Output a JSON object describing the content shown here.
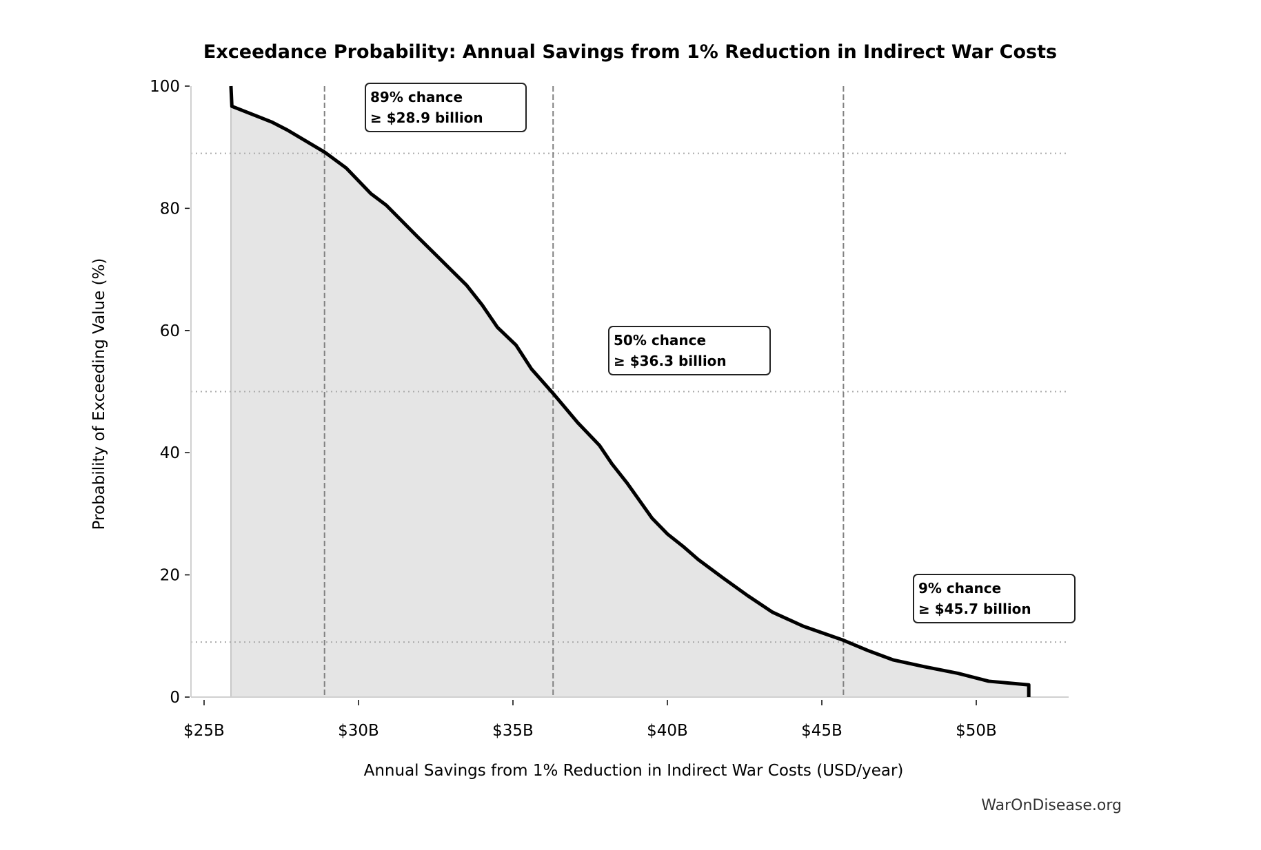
{
  "chart_data": {
    "type": "area",
    "title": "Exceedance Probability: Annual Savings from 1% Reduction in Indirect War Costs",
    "xlabel": "Annual Savings from 1% Reduction in Indirect War Costs (USD/year)",
    "ylabel": "Probability of Exceeding Value (%)",
    "xlim": [
      24.6,
      53.2
    ],
    "ylim": [
      0,
      100
    ],
    "x_ticks": [
      25,
      30,
      35,
      40,
      45,
      50
    ],
    "x_tick_labels": [
      "$25B",
      "$30B",
      "$35B",
      "$40B",
      "$45B",
      "$50B"
    ],
    "y_ticks": [
      0,
      20,
      40,
      60,
      80,
      100
    ],
    "y_tick_labels": [
      "0",
      "20",
      "40",
      "60",
      "80",
      "100"
    ],
    "grid": false,
    "line_color": "#000000",
    "fill_color": "#e5e5e5",
    "x": [
      25.87,
      25.9,
      27.2,
      27.7,
      28.9,
      29.6,
      30.4,
      30.9,
      31.9,
      32.7,
      33.5,
      34.0,
      34.5,
      35.1,
      35.6,
      36.3,
      37.1,
      37.8,
      38.2,
      38.7,
      39.5,
      40.0,
      40.5,
      41.0,
      41.8,
      42.6,
      43.4,
      44.4,
      45.7,
      46.5,
      47.3,
      48.3,
      49.4,
      50.4,
      51.7,
      51.7
    ],
    "y": [
      100,
      96.7,
      94.1,
      92.8,
      89.2,
      86.6,
      82.4,
      80.5,
      75.4,
      71.4,
      67.4,
      64.2,
      60.5,
      57.6,
      53.7,
      49.7,
      44.9,
      41.2,
      38.2,
      35.0,
      29.3,
      26.7,
      24.7,
      22.5,
      19.5,
      16.6,
      13.9,
      11.6,
      9.3,
      7.6,
      6.1,
      5.0,
      3.9,
      2.6,
      2.0,
      0
    ],
    "reference_lines": [
      {
        "x": 28.9,
        "y": 89
      },
      {
        "x": 36.3,
        "y": 50
      },
      {
        "x": 45.7,
        "y": 9
      }
    ],
    "annotations": [
      {
        "line1": "89% chance",
        "line2": "≥ $28.9 billion"
      },
      {
        "line1": "50% chance",
        "line2": "≥ $36.3 billion"
      },
      {
        "line1": "9% chance",
        "line2": "≥ $45.7 billion"
      }
    ]
  },
  "watermark": "WarOnDisease.org"
}
